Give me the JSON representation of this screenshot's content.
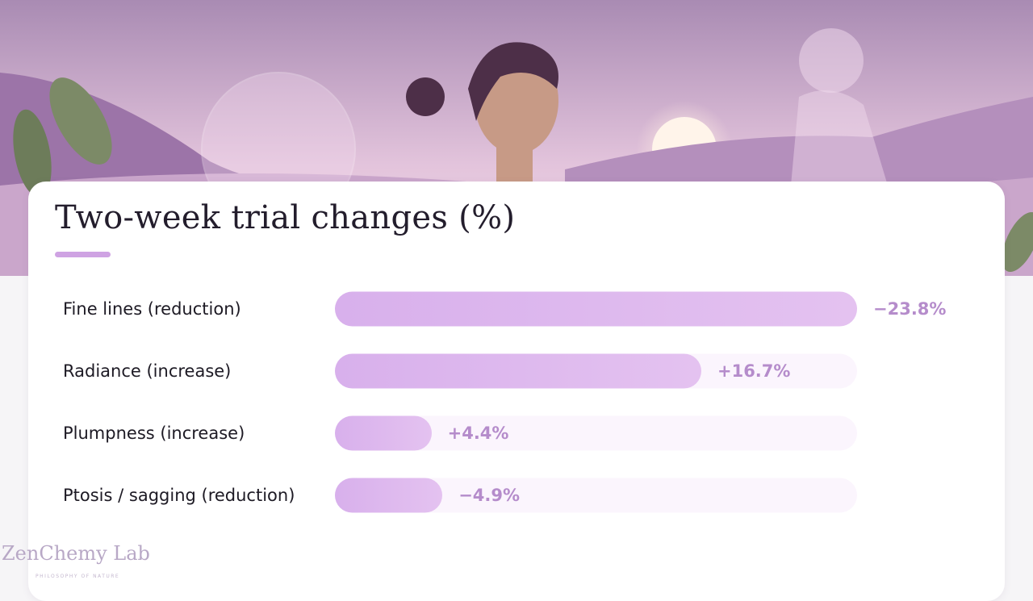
{
  "brand": {
    "name": "ZenChemy Lab",
    "tagline": "PHILOSOPHY OF NATURE"
  },
  "chart_data": {
    "type": "bar",
    "orientation": "horizontal",
    "title": "Two-week trial changes (%)",
    "categories": [
      "Fine lines (reduction)",
      "Radiance (increase)",
      "Plumpness (increase)",
      "Ptosis / sagging (reduction)"
    ],
    "values": [
      -23.8,
      16.7,
      4.4,
      -4.9
    ],
    "value_labels": [
      "−23.8%",
      "+16.7%",
      "+4.4%",
      "−4.9%"
    ],
    "color": "#d8b0ec"
  }
}
